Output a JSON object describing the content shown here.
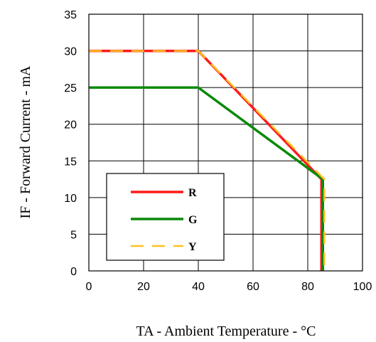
{
  "chart_data": {
    "type": "line",
    "xlabel": "TA - Ambient Temperature - °C",
    "ylabel": "IF - Forward Current - mA",
    "xlim": [
      0,
      100
    ],
    "ylim": [
      0,
      35
    ],
    "xticks": [
      "0",
      "20",
      "40",
      "60",
      "80",
      "100"
    ],
    "yticks": [
      "0",
      "5",
      "10",
      "15",
      "20",
      "25",
      "30",
      "35"
    ],
    "grid": true,
    "legend_position": "bottom-left",
    "series": [
      {
        "name": "R",
        "color": "#ff1a1a",
        "dash": "solid",
        "x": [
          0,
          40,
          85,
          85
        ],
        "y": [
          30,
          30,
          12.5,
          0
        ]
      },
      {
        "name": "G",
        "color": "#0a8a0a",
        "dash": "solid",
        "x": [
          0,
          40,
          85,
          85
        ],
        "y": [
          25,
          25,
          12.5,
          0
        ]
      },
      {
        "name": "Y",
        "color": "#ffc020",
        "dash": "dashed",
        "x": [
          0,
          40,
          85,
          85
        ],
        "y": [
          30,
          30,
          12.5,
          0
        ]
      }
    ]
  }
}
